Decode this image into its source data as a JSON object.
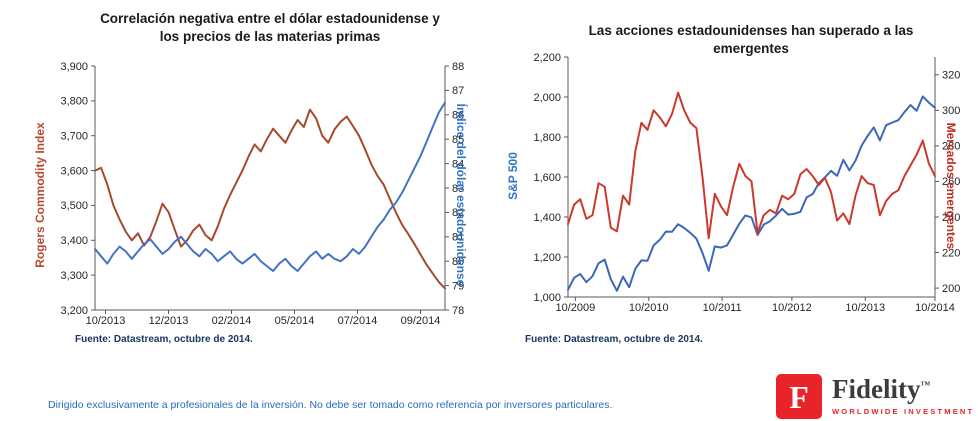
{
  "chart_data": [
    {
      "type": "line",
      "title": "Correlación negativa entre el dólar estadounidense y los precios de las materias primas",
      "source": "Fuente: Datastream, octubre de 2014.",
      "x_axis": {
        "labels": [
          "10/2013",
          "12/2013",
          "02/2014",
          "05/2014",
          "07/2014",
          "09/2014"
        ],
        "pos": [
          0.03,
          0.21,
          0.39,
          0.57,
          0.75,
          0.93
        ]
      },
      "left_axis": {
        "label": "Rogers Commodity Index",
        "color": "#b84a32",
        "min": 3200,
        "max": 3900,
        "tick_values": [
          3900,
          3800,
          3700,
          3600,
          3500,
          3400,
          3300,
          3200
        ],
        "tick_labels": [
          "3,900",
          "3,800",
          "3,700",
          "3,600",
          "3,500",
          "3,400",
          "3,300",
          "3,200"
        ]
      },
      "right_axis": {
        "label": "Índice del dólar estadounidense",
        "color": "#2e75c6",
        "min": 78,
        "max": 88,
        "tick_values": [
          88,
          87,
          86,
          85,
          84,
          83,
          82,
          81,
          80,
          79,
          78
        ],
        "tick_labels": [
          "88",
          "87",
          "86",
          "85",
          "84",
          "83",
          "82",
          "81",
          "80",
          "79",
          "78"
        ]
      },
      "series": [
        {
          "name": "Rogers Commodity Index",
          "axis": "left",
          "color": "#a54a2d",
          "values": [
            3600,
            3608,
            3560,
            3500,
            3460,
            3425,
            3400,
            3420,
            3385,
            3410,
            3455,
            3505,
            3480,
            3430,
            3382,
            3400,
            3428,
            3445,
            3415,
            3400,
            3440,
            3490,
            3530,
            3565,
            3600,
            3640,
            3675,
            3655,
            3690,
            3720,
            3700,
            3680,
            3715,
            3745,
            3725,
            3775,
            3750,
            3700,
            3680,
            3718,
            3740,
            3755,
            3728,
            3700,
            3660,
            3618,
            3585,
            3560,
            3520,
            3480,
            3445,
            3418,
            3390,
            3360,
            3330,
            3305,
            3280,
            3262
          ]
        },
        {
          "name": "Índice del dólar estadounidense",
          "axis": "right",
          "color": "#4472c4",
          "values": [
            80.5,
            80.2,
            79.9,
            80.3,
            80.6,
            80.4,
            80.1,
            80.4,
            80.7,
            80.9,
            80.6,
            80.3,
            80.5,
            80.8,
            81.0,
            80.7,
            80.4,
            80.2,
            80.5,
            80.3,
            80.0,
            80.2,
            80.4,
            80.1,
            79.9,
            80.1,
            80.3,
            80.0,
            79.8,
            79.6,
            79.9,
            80.1,
            79.8,
            79.6,
            79.9,
            80.2,
            80.4,
            80.1,
            80.3,
            80.1,
            80.0,
            80.2,
            80.5,
            80.3,
            80.6,
            81.0,
            81.4,
            81.7,
            82.1,
            82.4,
            82.8,
            83.3,
            83.8,
            84.3,
            84.9,
            85.5,
            86.1,
            86.5
          ]
        }
      ]
    },
    {
      "type": "line",
      "title": "Las acciones estadounidenses han superado a las emergentes",
      "source": "Fuente: Datastream, octubre de 2014.",
      "x_axis": {
        "labels": [
          "10/2009",
          "10/2010",
          "10/2011",
          "10/2012",
          "10/2013",
          "10/2014"
        ],
        "pos": [
          0.02,
          0.22,
          0.42,
          0.61,
          0.81,
          1.0
        ]
      },
      "left_axis": {
        "label": "S&P 500",
        "color": "#2e75c6",
        "min": 1000,
        "max": 2200,
        "tick_values": [
          2200,
          2000,
          1800,
          1600,
          1400,
          1200,
          1000
        ],
        "tick_labels": [
          "2,200",
          "2,000",
          "1,800",
          "1,600",
          "1,400",
          "1,200",
          "1,000"
        ]
      },
      "right_axis": {
        "label": "Mercados emergentes",
        "color": "#bf2e23",
        "min": 195,
        "max": 330,
        "tick_values": [
          320,
          300,
          280,
          260,
          240,
          220,
          200
        ],
        "tick_labels": [
          "320",
          "300",
          "280",
          "260",
          "240",
          "220",
          "200"
        ]
      },
      "series": [
        {
          "name": "S&P 500",
          "axis": "left",
          "color": "#3b68b8",
          "values": [
            1036,
            1096,
            1115,
            1074,
            1104,
            1169,
            1187,
            1089,
            1031,
            1102,
            1049,
            1141,
            1183,
            1181,
            1258,
            1286,
            1327,
            1326,
            1364,
            1345,
            1321,
            1292,
            1219,
            1131,
            1253,
            1247,
            1258,
            1312,
            1366,
            1408,
            1398,
            1310,
            1362,
            1379,
            1407,
            1441,
            1412,
            1416,
            1426,
            1498,
            1515,
            1569,
            1598,
            1631,
            1606,
            1686,
            1633,
            1682,
            1757,
            1806,
            1848,
            1783,
            1859,
            1872,
            1884,
            1924,
            1960,
            1931,
            2003,
            1972,
            1946
          ]
        },
        {
          "name": "Mercados emergentes",
          "axis": "right",
          "color": "#cc382b",
          "values": [
            236,
            247,
            250,
            239,
            241,
            259,
            257,
            234,
            232,
            252,
            247,
            277,
            293,
            289,
            300,
            296,
            291,
            298,
            310,
            300,
            293,
            290,
            262,
            228,
            253,
            246,
            241,
            257,
            270,
            263,
            260,
            231,
            241,
            244,
            242,
            252,
            250,
            253,
            264,
            267,
            263,
            258,
            262,
            254,
            238,
            242,
            236,
            252,
            263,
            259,
            258,
            241,
            249,
            253,
            255,
            263,
            269,
            275,
            283,
            270,
            263
          ]
        }
      ]
    }
  ],
  "footer": {
    "disclaimer": "Dirigido exclusivamente a profesionales de la inversión. No debe ser tomado como referencia por inversores particulares."
  },
  "logo": {
    "glyph": "F",
    "name": "Fidelity",
    "trademark": "™",
    "tagline": "WORLDWIDE INVESTMENT"
  }
}
